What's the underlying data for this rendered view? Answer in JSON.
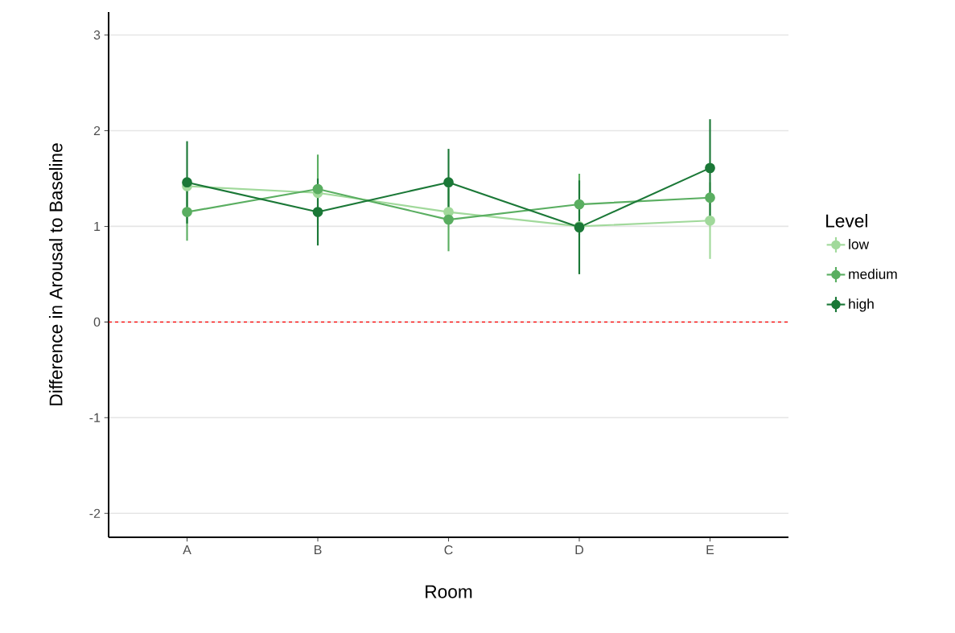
{
  "chart_data": {
    "type": "line",
    "xlabel": "Room",
    "ylabel": "Difference in Arousal to Baseline",
    "legend_title": "Level",
    "categories": [
      "A",
      "B",
      "C",
      "D",
      "E"
    ],
    "series": [
      {
        "name": "low",
        "color": "#a1d99b",
        "values": [
          1.42,
          1.35,
          1.15,
          1.0,
          1.06
        ],
        "errors": [
          null,
          null,
          null,
          null,
          0.4
        ]
      },
      {
        "name": "medium",
        "color": "#5aae61",
        "values": [
          1.15,
          1.39,
          1.07,
          1.23,
          1.3
        ],
        "errors": [
          0.3,
          0.36,
          0.33,
          0.32,
          null
        ]
      },
      {
        "name": "high",
        "color": "#1b7837",
        "values": [
          1.46,
          1.15,
          1.46,
          0.99,
          1.61
        ],
        "errors": [
          0.43,
          0.35,
          0.35,
          0.49,
          0.51
        ]
      }
    ],
    "ylim": [
      -2.25,
      3.24
    ],
    "yticks": [
      -2,
      -1,
      0,
      1,
      2,
      3
    ],
    "ref_lines": [
      {
        "axis": "y",
        "value": 0,
        "color": "#ff0000",
        "line_style": "dashed"
      }
    ],
    "grid": "y",
    "legend": "right",
    "marker": "circle",
    "line_style": "solid"
  }
}
